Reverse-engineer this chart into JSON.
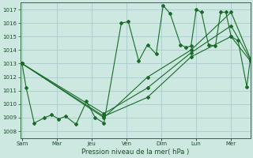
{
  "xlabel": "Pression niveau de la mer( hPa )",
  "ylim": [
    1007.5,
    1017.5
  ],
  "yticks": [
    1008,
    1009,
    1010,
    1011,
    1012,
    1013,
    1014,
    1015,
    1016,
    1017
  ],
  "xtick_labels": [
    "Sam",
    "Mar",
    "Jeu",
    "Ven",
    "Dim",
    "Lun",
    "Mer"
  ],
  "xtick_positions": [
    0,
    1,
    2,
    3,
    4,
    5,
    6
  ],
  "xlim": [
    -0.05,
    6.55
  ],
  "background_color": "#cce8e0",
  "grid_color": "#aacccc",
  "line_color": "#1a6b2a",
  "series": [
    {
      "x": [
        0.0,
        0.12,
        0.35,
        0.65,
        0.85,
        1.05,
        1.25,
        1.55,
        1.85,
        2.1,
        2.35,
        2.85,
        3.05,
        3.35,
        3.6,
        3.85,
        4.05,
        4.25,
        4.55,
        4.7,
        4.85,
        5.0,
        5.15,
        5.35,
        5.55,
        5.7,
        5.85,
        6.0,
        6.2,
        6.45,
        6.55
      ],
      "y": [
        1013.0,
        1011.2,
        1008.6,
        1009.0,
        1009.2,
        1008.9,
        1009.1,
        1008.5,
        1010.2,
        1009.0,
        1008.6,
        1016.0,
        1016.1,
        1013.2,
        1014.4,
        1013.7,
        1017.3,
        1016.7,
        1014.4,
        1014.2,
        1014.3,
        1017.0,
        1016.8,
        1014.4,
        1014.3,
        1016.8,
        1016.8,
        1015.0,
        1014.7,
        1011.3,
        1013.3
      ]
    },
    {
      "x": [
        0.0,
        2.35,
        3.6,
        4.85,
        6.0,
        6.55
      ],
      "y": [
        1013.0,
        1009.0,
        1012.0,
        1014.0,
        1016.8,
        1013.4
      ]
    },
    {
      "x": [
        0.0,
        2.35,
        3.6,
        4.85,
        6.0,
        6.55
      ],
      "y": [
        1013.0,
        1009.3,
        1011.2,
        1013.8,
        1015.8,
        1013.3
      ]
    },
    {
      "x": [
        0.0,
        2.35,
        3.6,
        4.85,
        6.0,
        6.55
      ],
      "y": [
        1013.0,
        1009.1,
        1010.5,
        1013.5,
        1015.0,
        1013.2
      ]
    }
  ]
}
